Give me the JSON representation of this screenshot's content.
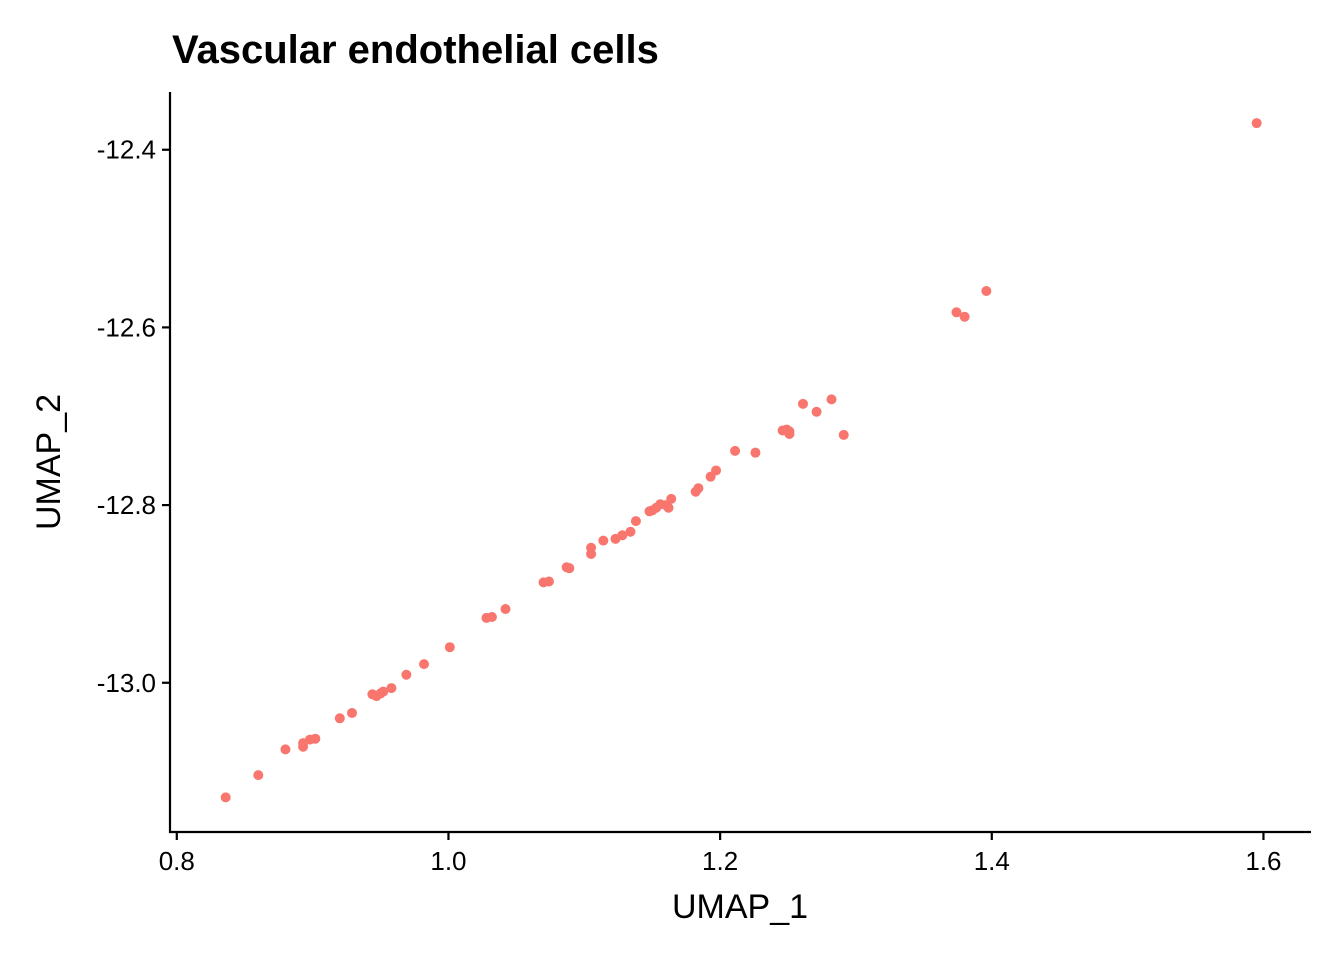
{
  "chart_data": {
    "type": "scatter",
    "title": "Vascular endothelial cells",
    "xlabel": "UMAP_1",
    "ylabel": "UMAP_2",
    "xlim": [
      0.795,
      1.635
    ],
    "ylim": [
      -13.168,
      -12.335
    ],
    "x_ticks": [
      {
        "value": 0.8,
        "label": "0.8"
      },
      {
        "value": 1.0,
        "label": "1.0"
      },
      {
        "value": 1.2,
        "label": "1.2"
      },
      {
        "value": 1.4,
        "label": "1.4"
      },
      {
        "value": 1.6,
        "label": "1.6"
      }
    ],
    "y_ticks": [
      {
        "value": -12.4,
        "label": "-12.4"
      },
      {
        "value": -12.6,
        "label": "-12.6"
      },
      {
        "value": -12.8,
        "label": "-12.8"
      },
      {
        "value": -13.0,
        "label": "-13.0"
      }
    ],
    "grid": false,
    "legend": "none",
    "point_color": "#F8766D",
    "points": [
      [
        0.836,
        -13.129
      ],
      [
        0.86,
        -13.104
      ],
      [
        0.88,
        -13.075
      ],
      [
        0.893,
        -13.068
      ],
      [
        0.893,
        -13.072
      ],
      [
        0.898,
        -13.064
      ],
      [
        0.902,
        -13.063
      ],
      [
        0.92,
        -13.04
      ],
      [
        0.929,
        -13.034
      ],
      [
        0.944,
        -13.013
      ],
      [
        0.947,
        -13.015
      ],
      [
        0.95,
        -13.012
      ],
      [
        0.952,
        -13.01
      ],
      [
        0.958,
        -13.006
      ],
      [
        0.969,
        -12.991
      ],
      [
        0.982,
        -12.979
      ],
      [
        1.001,
        -12.96
      ],
      [
        1.028,
        -12.927
      ],
      [
        1.032,
        -12.926
      ],
      [
        1.042,
        -12.917
      ],
      [
        1.07,
        -12.887
      ],
      [
        1.074,
        -12.886
      ],
      [
        1.087,
        -12.87
      ],
      [
        1.089,
        -12.871
      ],
      [
        1.105,
        -12.855
      ],
      [
        1.105,
        -12.848
      ],
      [
        1.114,
        -12.84
      ],
      [
        1.123,
        -12.838
      ],
      [
        1.128,
        -12.834
      ],
      [
        1.134,
        -12.83
      ],
      [
        1.138,
        -12.818
      ],
      [
        1.148,
        -12.807
      ],
      [
        1.15,
        -12.806
      ],
      [
        1.153,
        -12.803
      ],
      [
        1.156,
        -12.799
      ],
      [
        1.16,
        -12.8
      ],
      [
        1.162,
        -12.803
      ],
      [
        1.164,
        -12.793
      ],
      [
        1.182,
        -12.785
      ],
      [
        1.184,
        -12.781
      ],
      [
        1.193,
        -12.768
      ],
      [
        1.197,
        -12.761
      ],
      [
        1.211,
        -12.739
      ],
      [
        1.226,
        -12.741
      ],
      [
        1.246,
        -12.716
      ],
      [
        1.249,
        -12.715
      ],
      [
        1.251,
        -12.72
      ],
      [
        1.251,
        -12.717
      ],
      [
        1.261,
        -12.686
      ],
      [
        1.271,
        -12.695
      ],
      [
        1.282,
        -12.681
      ],
      [
        1.291,
        -12.721
      ],
      [
        1.374,
        -12.583
      ],
      [
        1.38,
        -12.588
      ],
      [
        1.396,
        -12.559
      ],
      [
        1.595,
        -12.37
      ]
    ]
  }
}
